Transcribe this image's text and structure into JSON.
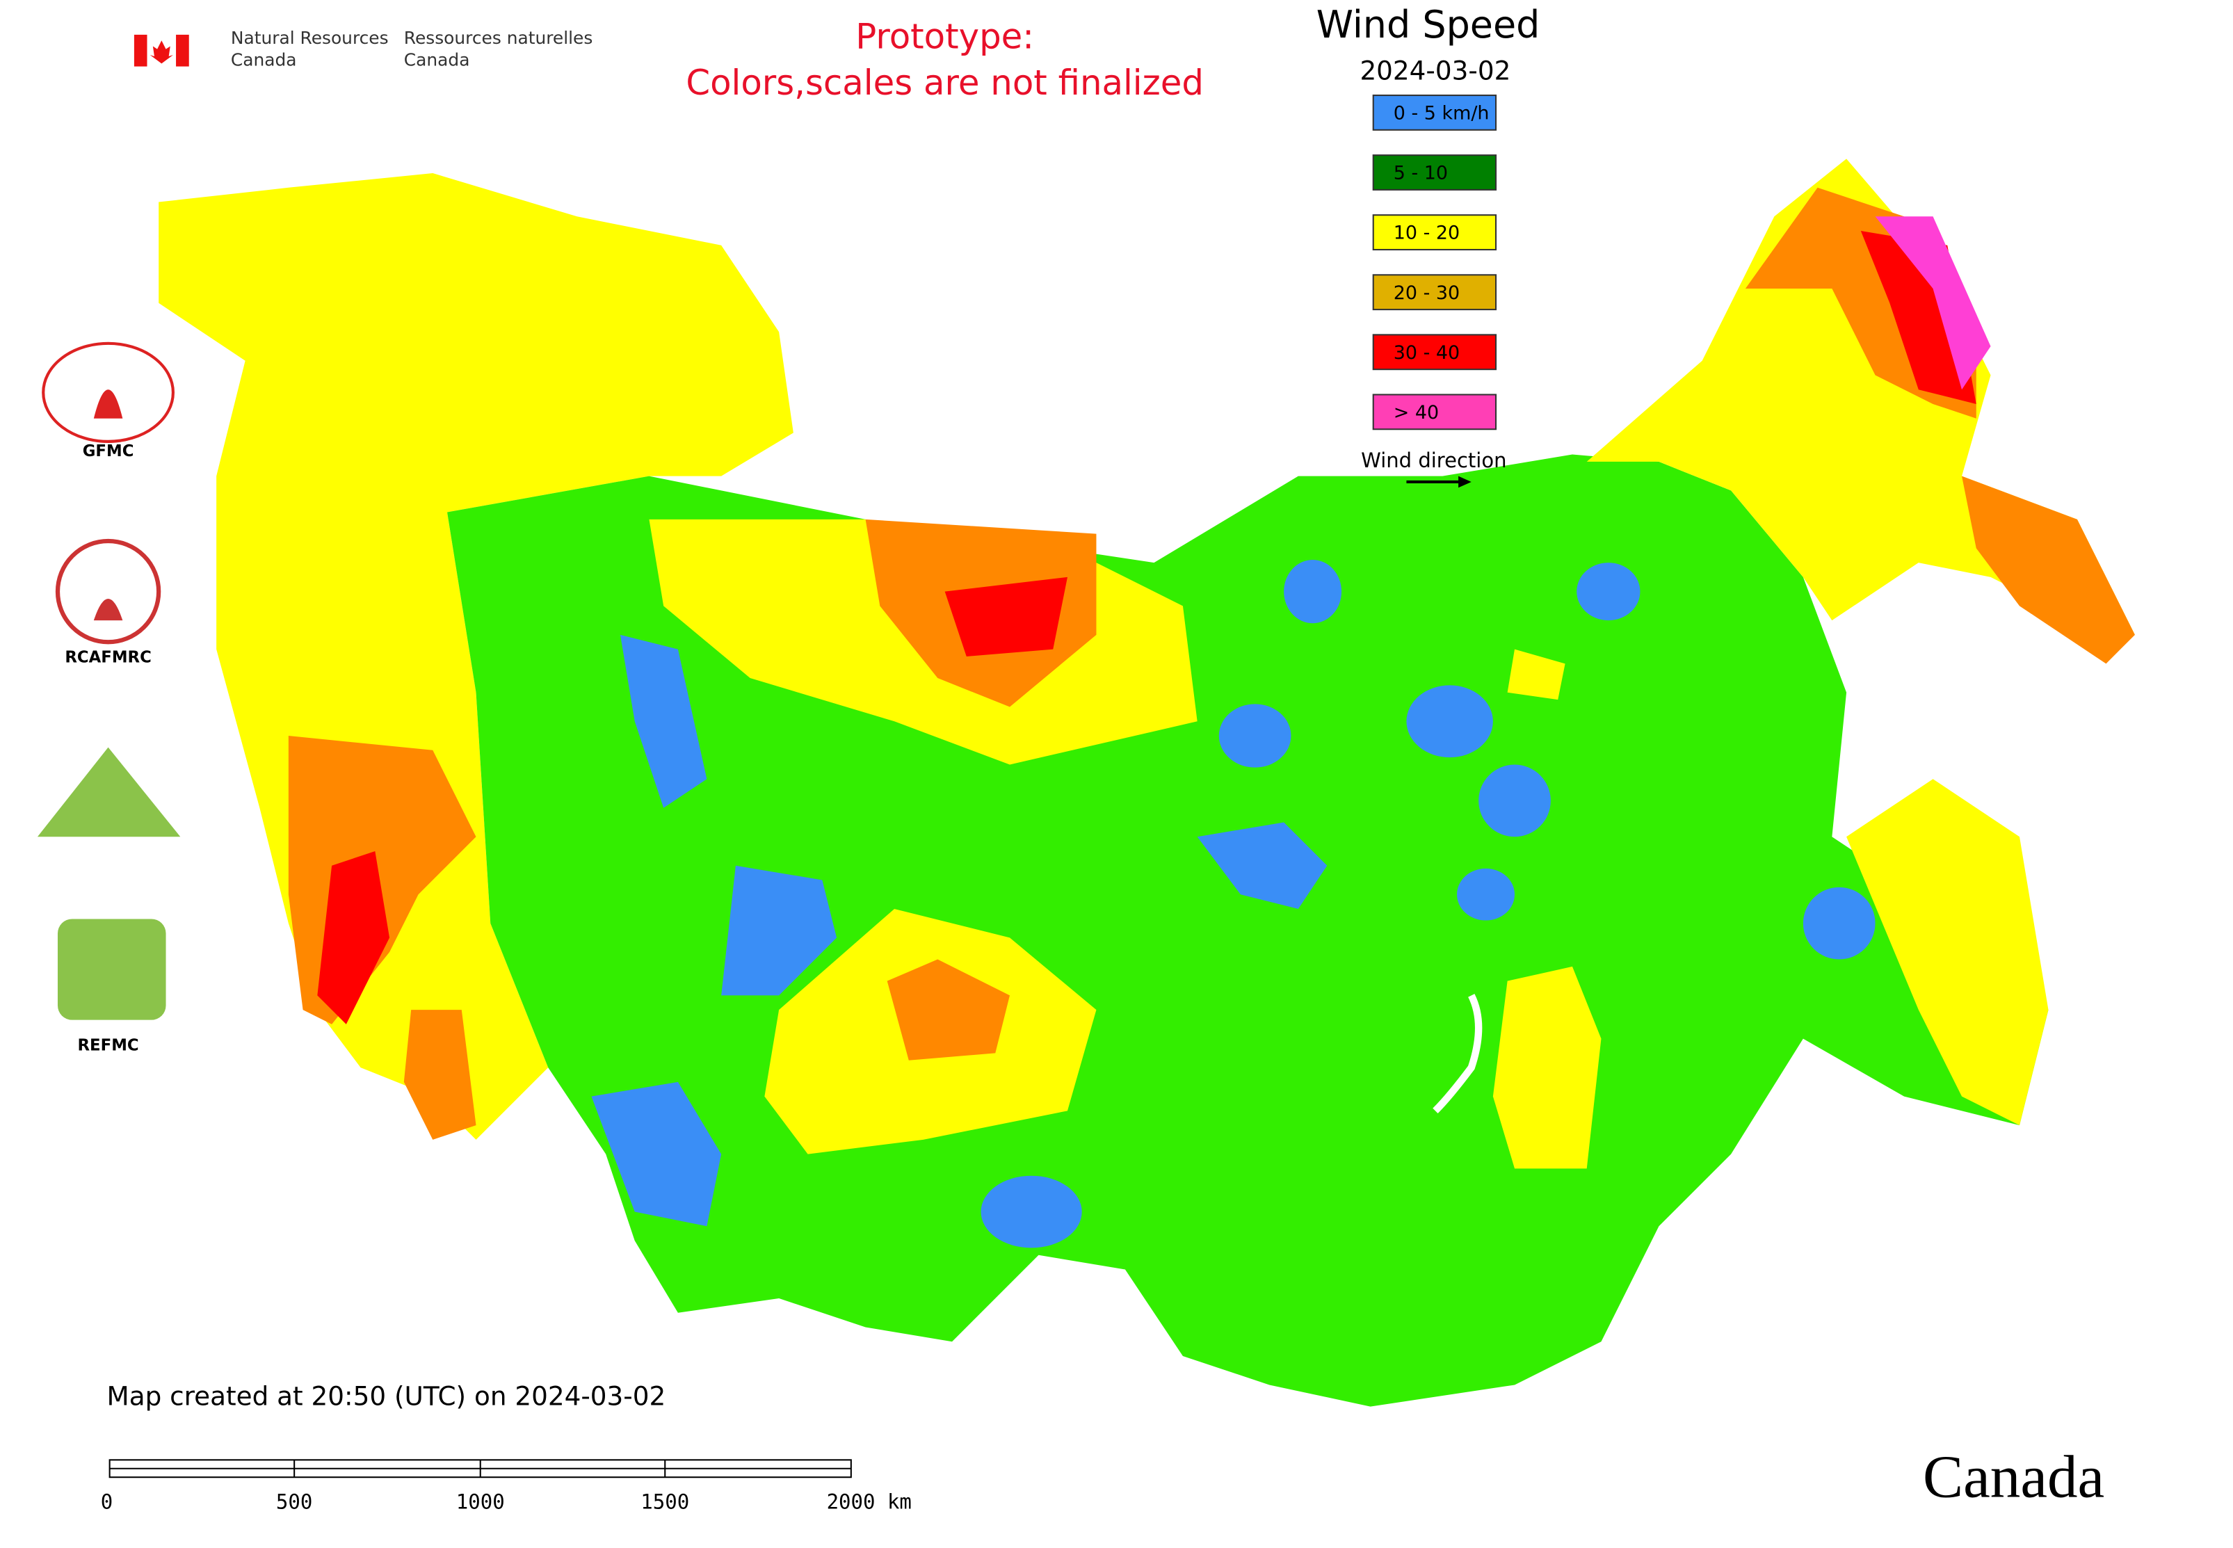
{
  "header": {
    "agency_en_1": "Natural Resources",
    "agency_en_2": "Canada",
    "agency_fr_1": "Ressources naturelles",
    "agency_fr_2": "Canada"
  },
  "notice": {
    "line1": "Prototype:",
    "line2": "Colors,scales are not finalized"
  },
  "legend": {
    "title": "Wind Speed",
    "date": "2024-03-02",
    "items": [
      {
        "label": "0 - 5 km/h",
        "color": "#3a8ef6"
      },
      {
        "label": "5 - 10",
        "color": "#008000"
      },
      {
        "label": "10 - 20",
        "color": "#ffff00"
      },
      {
        "label": "20 - 30",
        "color": "#e0b000"
      },
      {
        "label": "30 - 40",
        "color": "#ff0000"
      },
      {
        "label": "> 40",
        "color": "#ff3fb5"
      }
    ],
    "direction": "Wind direction"
  },
  "logos": [
    "GFMC",
    "RCAFMRC",
    "REFMC"
  ],
  "footer": {
    "created": "Map created at 20:50 (UTC) on 2024-03-02",
    "scale_labels": [
      "0",
      "500",
      "1000",
      "1500",
      "2000 km"
    ],
    "wordmark": "Canada"
  }
}
